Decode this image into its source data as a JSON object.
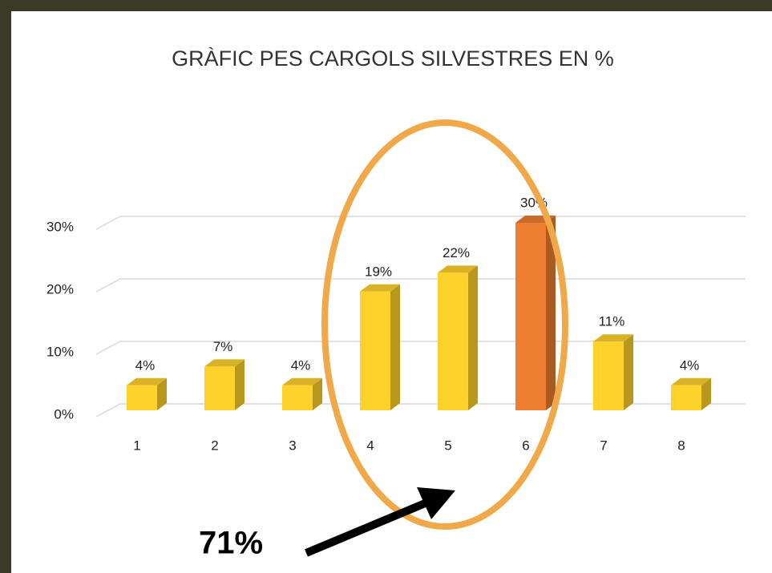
{
  "chart_data": {
    "type": "bar3d",
    "title": "GRÀFIC PES CARGOLS SILVESTRES EN %",
    "categories": [
      "1",
      "2",
      "3",
      "4",
      "5",
      "6",
      "7",
      "8"
    ],
    "values": [
      4,
      7,
      4,
      19,
      22,
      30,
      11,
      4
    ],
    "value_labels": [
      "4%",
      "7%",
      "4%",
      "19%",
      "22%",
      "30%",
      "11%",
      "4%"
    ],
    "colors": [
      "#ffd22b",
      "#ffd22b",
      "#ffd22b",
      "#ffd22b",
      "#ffd22b",
      "#ed7d31",
      "#ffd22b",
      "#ffd22b"
    ],
    "ylim": [
      0,
      30
    ],
    "yticks": [
      {
        "value": 0,
        "label": "0%"
      },
      {
        "value": 10,
        "label": "10%"
      },
      {
        "value": 20,
        "label": "20%"
      },
      {
        "value": 30,
        "label": "30%"
      }
    ],
    "grid": true,
    "annotation": "71%"
  }
}
